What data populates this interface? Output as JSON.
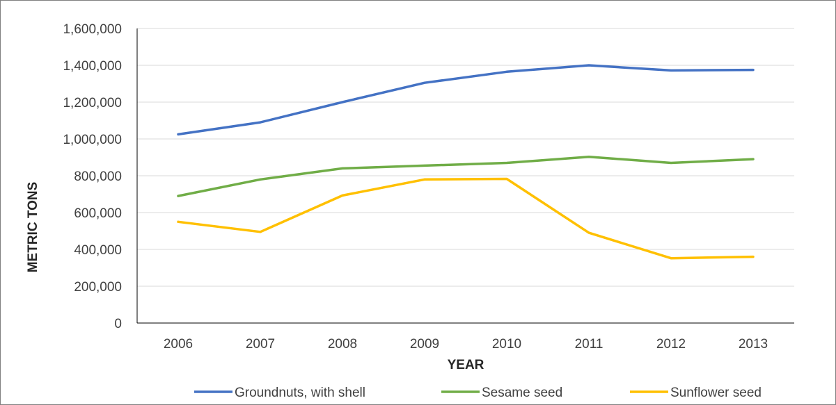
{
  "chart_data": {
    "type": "line",
    "title": "",
    "xlabel": "YEAR",
    "ylabel": "METRIC TONS",
    "categories": [
      "2006",
      "2007",
      "2008",
      "2009",
      "2010",
      "2011",
      "2012",
      "2013"
    ],
    "ylim": [
      0,
      1600000
    ],
    "yticks": [
      "0",
      "200,000",
      "400,000",
      "600,000",
      "800,000",
      "1,000,000",
      "1,200,000",
      "1,400,000",
      "1,600,000"
    ],
    "grid": true,
    "legend_position": "bottom",
    "series": [
      {
        "name": "Groundnuts, with shell",
        "color": "#4472c4",
        "values": [
          1025000,
          1090000,
          1200000,
          1305000,
          1365000,
          1400000,
          1372000,
          1375000
        ]
      },
      {
        "name": "Sesame seed",
        "color": "#70ad47",
        "values": [
          690000,
          780000,
          840000,
          855000,
          870000,
          903000,
          870000,
          890000
        ]
      },
      {
        "name": "Sunflower seed",
        "color": "#ffc000",
        "values": [
          550000,
          495000,
          693000,
          780000,
          783000,
          490000,
          352000,
          360000
        ]
      }
    ]
  }
}
